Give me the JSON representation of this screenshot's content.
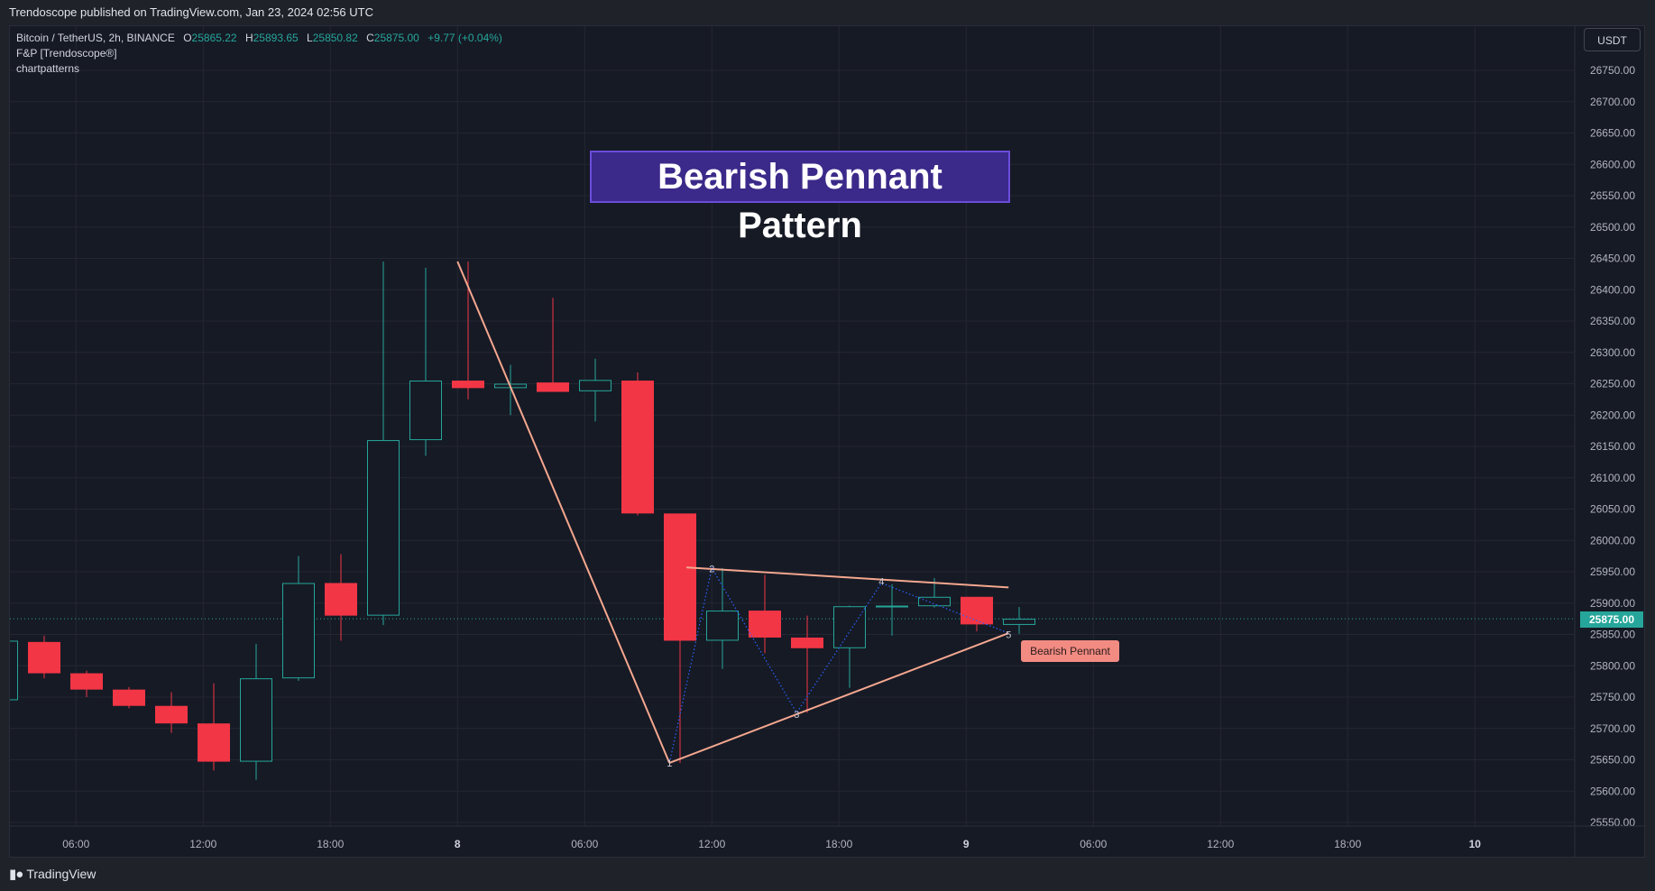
{
  "banner": {
    "text": "Trendoscope published on TradingView.com, Jan 23, 2024 02:56 UTC"
  },
  "legend": {
    "symbol": "Bitcoin / TetherUS, 2h, BINANCE",
    "o_label": "O",
    "o_value": "25865.22",
    "h_label": "H",
    "h_value": "25893.65",
    "l_label": "L",
    "l_value": "25850.82",
    "c_label": "C",
    "c_value": "25875.00",
    "change": "+9.77 (+0.04%)",
    "indicator1": "F&P [Trendoscope®]",
    "indicator2": "chartpatterns"
  },
  "currency": "USDT",
  "pattern_title": "Bearish Pennant Pattern",
  "pattern_label": "Bearish Pennant",
  "last_price_label": "25875.00",
  "footer": {
    "brand": "TradingView"
  },
  "colors": {
    "up": "#26a69a",
    "down": "#f23645",
    "pattern_line": "#f5a78f",
    "zigzag": "#2962ff",
    "grid": "#242733"
  },
  "chart_data": {
    "type": "candlestick",
    "y_ticks": [
      25550,
      25600,
      25650,
      25700,
      25750,
      25800,
      25850,
      25900,
      25950,
      26000,
      26050,
      26100,
      26150,
      26200,
      26250,
      26300,
      26350,
      26400,
      26450,
      26500,
      26550,
      26600,
      26650,
      26700,
      26750
    ],
    "ylim": [
      25520,
      26780
    ],
    "x_ticks": [
      {
        "label": "06:00",
        "bar": 1.75,
        "bold": false
      },
      {
        "label": "12:00",
        "bar": 4.75,
        "bold": false
      },
      {
        "label": "18:00",
        "bar": 7.75,
        "bold": false
      },
      {
        "label": "8",
        "bar": 10.75,
        "bold": true
      },
      {
        "label": "06:00",
        "bar": 13.75,
        "bold": false
      },
      {
        "label": "12:00",
        "bar": 16.75,
        "bold": false
      },
      {
        "label": "18:00",
        "bar": 19.75,
        "bold": false
      },
      {
        "label": "9",
        "bar": 22.75,
        "bold": true
      },
      {
        "label": "06:00",
        "bar": 25.75,
        "bold": false
      },
      {
        "label": "12:00",
        "bar": 28.75,
        "bold": false
      },
      {
        "label": "18:00",
        "bar": 31.75,
        "bold": false
      },
      {
        "label": "10",
        "bar": 34.75,
        "bold": true
      }
    ],
    "candles": [
      {
        "o": 25745,
        "h": 25845,
        "l": 25742,
        "c": 25840
      },
      {
        "o": 25838,
        "h": 25848,
        "l": 25780,
        "c": 25788
      },
      {
        "o": 25788,
        "h": 25792,
        "l": 25750,
        "c": 25762
      },
      {
        "o": 25762,
        "h": 25766,
        "l": 25732,
        "c": 25736
      },
      {
        "o": 25736,
        "h": 25758,
        "l": 25693,
        "c": 25708
      },
      {
        "o": 25708,
        "h": 25772,
        "l": 25633,
        "c": 25647
      },
      {
        "o": 25647,
        "h": 25835,
        "l": 25618,
        "c": 25780
      },
      {
        "o": 25780,
        "h": 25975,
        "l": 25776,
        "c": 25932
      },
      {
        "o": 25932,
        "h": 25978,
        "l": 25840,
        "c": 25880
      },
      {
        "o": 25880,
        "h": 26445,
        "l": 25865,
        "c": 26160
      },
      {
        "o": 26160,
        "h": 26435,
        "l": 26135,
        "c": 26255
      },
      {
        "o": 26255,
        "h": 26445,
        "l": 26225,
        "c": 26243
      },
      {
        "o": 26243,
        "h": 26280,
        "l": 26200,
        "c": 26250
      },
      {
        "o": 26252,
        "h": 26387,
        "l": 26237,
        "c": 26237
      },
      {
        "o": 26238,
        "h": 26290,
        "l": 26190,
        "c": 26256
      },
      {
        "o": 26255,
        "h": 26268,
        "l": 26040,
        "c": 26043
      },
      {
        "o": 26043,
        "h": 26043,
        "l": 25645,
        "c": 25840
      },
      {
        "o": 25840,
        "h": 25956,
        "l": 25795,
        "c": 25888
      },
      {
        "o": 25888,
        "h": 25945,
        "l": 25820,
        "c": 25845
      },
      {
        "o": 25845,
        "h": 25880,
        "l": 25725,
        "c": 25828
      },
      {
        "o": 25828,
        "h": 25896,
        "l": 25765,
        "c": 25895
      },
      {
        "o": 25896,
        "h": 25930,
        "l": 25848,
        "c": 25896
      },
      {
        "o": 25895,
        "h": 25940,
        "l": 25893,
        "c": 25910
      },
      {
        "o": 25910,
        "h": 25910,
        "l": 25855,
        "c": 25866
      },
      {
        "o": 25865.22,
        "h": 25893.65,
        "l": 25850.82,
        "c": 25875.0
      }
    ],
    "last_price": 25875.0,
    "pattern_lines": [
      {
        "x1": 10.75,
        "y1": 26445,
        "x2": 15.75,
        "y2": 25645
      },
      {
        "x1": 15.75,
        "y1": 25645,
        "x2": 23.75,
        "y2": 25852
      },
      {
        "x1": 16.15,
        "y1": 25957,
        "x2": 23.75,
        "y2": 25925
      }
    ],
    "zigzag": [
      {
        "bar": 15.75,
        "price": 25645
      },
      {
        "bar": 16.75,
        "price": 25956
      },
      {
        "bar": 18.75,
        "price": 25725
      },
      {
        "bar": 20.75,
        "price": 25932
      },
      {
        "bar": 23.75,
        "price": 25852
      }
    ],
    "pivot_labels": [
      {
        "text": "1",
        "bar": 15.75,
        "price": 25645
      },
      {
        "text": "2",
        "bar": 16.75,
        "price": 25955
      },
      {
        "text": "3",
        "bar": 18.75,
        "price": 25723
      },
      {
        "text": "4",
        "bar": 20.75,
        "price": 25935
      },
      {
        "text": "5",
        "bar": 23.75,
        "price": 25850
      }
    ]
  }
}
